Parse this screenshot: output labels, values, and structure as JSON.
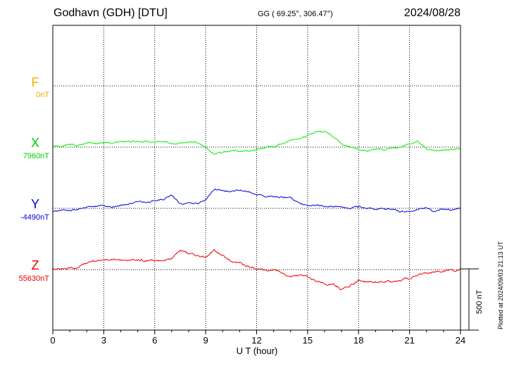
{
  "header": {
    "station": "Godhavn (GDH)  [DTU]",
    "coords": "GG ( 69.25°, 306.47°)",
    "date": "2024/08/28"
  },
  "plotted_note": "Plotted at 2024/09/03 21:13 UT",
  "colors": {
    "F": "#f0b000",
    "X": "#00ee00",
    "Y": "#0000dd",
    "Z": "#ee0000"
  },
  "chart_data": {
    "type": "line",
    "title": "Godhavn (GDH)  [DTU]",
    "xlabel": "U T (hour)",
    "xlim": [
      0,
      24
    ],
    "x_ticks": [
      0,
      3,
      6,
      9,
      12,
      15,
      18,
      21,
      24
    ],
    "scale_bar_label": "500 nT",
    "grid": true,
    "components": [
      {
        "name": "F",
        "baseline_label": "0nT",
        "values": []
      },
      {
        "name": "X",
        "baseline_label": "7960nT",
        "x": [
          0,
          0.5,
          1,
          1.5,
          2,
          2.5,
          3,
          3.5,
          4,
          4.5,
          5,
          5.5,
          6,
          6.5,
          7,
          7.5,
          8,
          8.5,
          9,
          9.5,
          10,
          10.5,
          11,
          11.5,
          12,
          12.5,
          13,
          13.5,
          14,
          14.5,
          15,
          15.5,
          16,
          16.5,
          17,
          17.5,
          18,
          18.5,
          19,
          19.5,
          20,
          20.5,
          21,
          21.5,
          22,
          22.5,
          23,
          23.5,
          24
        ],
        "values": [
          7960,
          7965,
          7985,
          7975,
          8000,
          7985,
          8000,
          7995,
          8005,
          8005,
          8010,
          8005,
          8000,
          8005,
          7990,
          7990,
          8000,
          7995,
          7960,
          7900,
          7920,
          7930,
          7925,
          7930,
          7935,
          7955,
          7965,
          7990,
          8010,
          8030,
          8050,
          8090,
          8090,
          8050,
          7990,
          7960,
          7940,
          7930,
          7945,
          7940,
          7950,
          7960,
          7990,
          8010,
          7950,
          7930,
          7935,
          7940,
          7950
        ]
      },
      {
        "name": "Y",
        "baseline_label": "-4490nT",
        "x": [
          0,
          0.5,
          1,
          1.5,
          2,
          2.5,
          3,
          3.5,
          4,
          4.5,
          5,
          5.5,
          6,
          6.5,
          7,
          7.5,
          8,
          8.5,
          9,
          9.5,
          10,
          10.5,
          11,
          11.5,
          12,
          12.5,
          13,
          13.5,
          14,
          14.5,
          15,
          15.5,
          16,
          16.5,
          17,
          17.5,
          18,
          18.5,
          19,
          19.5,
          20,
          20.5,
          21,
          21.5,
          22,
          22.5,
          23,
          23.5,
          24
        ],
        "values": [
          -4520,
          -4505,
          -4510,
          -4500,
          -4485,
          -4475,
          -4470,
          -4480,
          -4465,
          -4450,
          -4435,
          -4440,
          -4430,
          -4420,
          -4380,
          -4450,
          -4445,
          -4450,
          -4420,
          -4335,
          -4345,
          -4350,
          -4340,
          -4350,
          -4375,
          -4390,
          -4395,
          -4400,
          -4405,
          -4445,
          -4470,
          -4465,
          -4470,
          -4475,
          -4480,
          -4485,
          -4475,
          -4490,
          -4495,
          -4490,
          -4500,
          -4515,
          -4520,
          -4500,
          -4490,
          -4515,
          -4495,
          -4505,
          -4490
        ]
      },
      {
        "name": "Z",
        "baseline_label": "55630nT",
        "x": [
          0,
          0.5,
          1,
          1.5,
          2,
          2.5,
          3,
          3.5,
          4,
          4.5,
          5,
          5.5,
          6,
          6.5,
          7,
          7.5,
          8,
          8.5,
          9,
          9.5,
          10,
          10.5,
          11,
          11.5,
          12,
          12.5,
          13,
          13.5,
          14,
          14.5,
          15,
          15.5,
          16,
          16.5,
          17,
          17.5,
          18,
          18.5,
          19,
          19.5,
          20,
          20.5,
          21,
          21.5,
          22,
          22.5,
          23,
          23.5,
          24
        ],
        "values": [
          55630,
          55635,
          55640,
          55650,
          55680,
          55700,
          55715,
          55710,
          55705,
          55705,
          55710,
          55705,
          55705,
          55700,
          55720,
          55790,
          55760,
          55740,
          55730,
          55790,
          55750,
          55700,
          55680,
          55660,
          55640,
          55630,
          55620,
          55600,
          55560,
          55580,
          55570,
          55530,
          55520,
          55510,
          55470,
          55500,
          55540,
          55530,
          55525,
          55530,
          55535,
          55545,
          55560,
          55590,
          55600,
          55610,
          55620,
          55625,
          55630
        ]
      }
    ]
  }
}
